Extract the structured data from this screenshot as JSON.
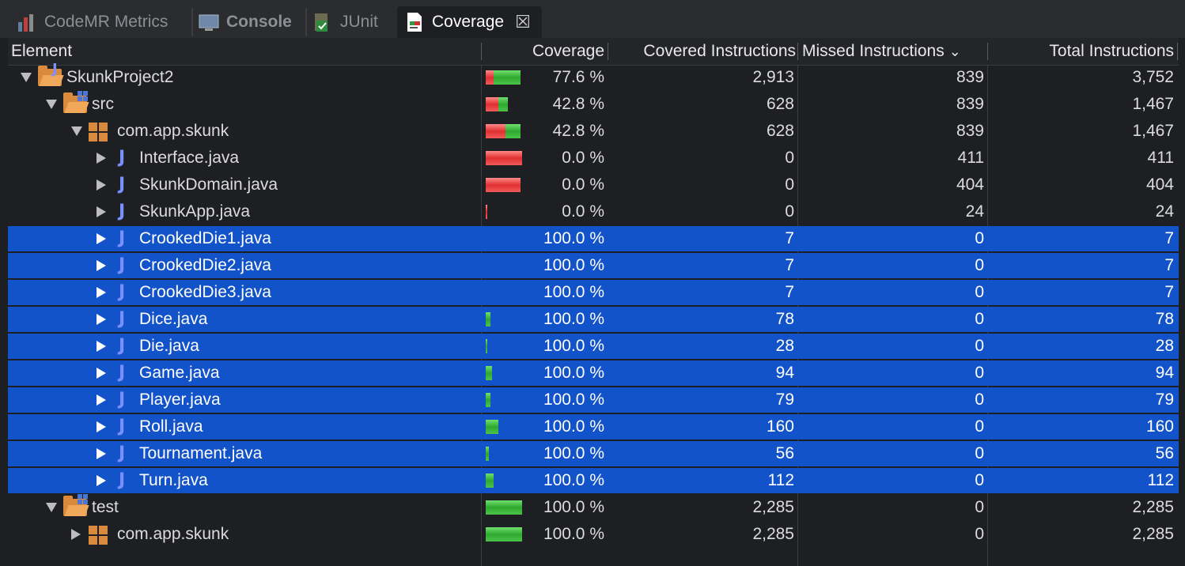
{
  "tabs": [
    {
      "label": "CodeMR Metrics",
      "icon": "bar-chart-icon"
    },
    {
      "label": "Console",
      "icon": "monitor-icon"
    },
    {
      "label": "JUnit",
      "icon": "junit-icon"
    },
    {
      "label": "Coverage",
      "icon": "coverage-icon",
      "close": "☒"
    }
  ],
  "columns": {
    "element": "Element",
    "coverage": "Coverage",
    "covered": "Covered Instructions",
    "missed": "Missed Instructions",
    "total": "Total Instructions",
    "sort_indicator": "⌄"
  },
  "colors": {
    "selection": "#1353c9",
    "covered_bar": "#3fbf3f",
    "missed_bar": "#e84040"
  },
  "rows": [
    {
      "name": "SkunkProject2",
      "icon": "java-project-icon",
      "coverage": "77.6 %",
      "covered": "2,913",
      "missed": "839",
      "total": "3,752",
      "covered_fraction": 0.776,
      "expanded": true,
      "selected": false
    },
    {
      "name": "src",
      "icon": "source-folder-icon",
      "coverage": "42.8 %",
      "covered": "628",
      "missed": "839",
      "total": "1,467",
      "covered_fraction": 0.428,
      "expanded": true,
      "selected": false
    },
    {
      "name": "com.app.skunk",
      "icon": "package-icon",
      "coverage": "42.8 %",
      "covered": "628",
      "missed": "839",
      "total": "1,467",
      "covered_fraction": 0.428,
      "expanded": true,
      "selected": false
    },
    {
      "name": "Interface.java",
      "icon": "java-file-icon",
      "coverage": "0.0 %",
      "covered": "0",
      "missed": "411",
      "total": "411",
      "covered_fraction": 0,
      "expanded": false,
      "selected": false
    },
    {
      "name": "SkunkDomain.java",
      "icon": "java-file-icon",
      "coverage": "0.0 %",
      "covered": "0",
      "missed": "404",
      "total": "404",
      "covered_fraction": 0,
      "expanded": false,
      "selected": false
    },
    {
      "name": "SkunkApp.java",
      "icon": "java-file-icon",
      "coverage": "0.0 %",
      "covered": "0",
      "missed": "24",
      "total": "24",
      "covered_fraction": 0,
      "expanded": false,
      "selected": false
    },
    {
      "name": "CrookedDie1.java",
      "icon": "java-file-icon",
      "coverage": "100.0 %",
      "covered": "7",
      "missed": "0",
      "total": "7",
      "covered_fraction": 1,
      "expanded": false,
      "selected": true
    },
    {
      "name": "CrookedDie2.java",
      "icon": "java-file-icon",
      "coverage": "100.0 %",
      "covered": "7",
      "missed": "0",
      "total": "7",
      "covered_fraction": 1,
      "expanded": false,
      "selected": true
    },
    {
      "name": "CrookedDie3.java",
      "icon": "java-file-icon",
      "coverage": "100.0 %",
      "covered": "7",
      "missed": "0",
      "total": "7",
      "covered_fraction": 1,
      "expanded": false,
      "selected": true
    },
    {
      "name": "Dice.java",
      "icon": "java-file-icon",
      "coverage": "100.0 %",
      "covered": "78",
      "missed": "0",
      "total": "78",
      "covered_fraction": 1,
      "expanded": false,
      "selected": true
    },
    {
      "name": "Die.java",
      "icon": "java-file-icon",
      "coverage": "100.0 %",
      "covered": "28",
      "missed": "0",
      "total": "28",
      "covered_fraction": 1,
      "expanded": false,
      "selected": true
    },
    {
      "name": "Game.java",
      "icon": "java-file-icon",
      "coverage": "100.0 %",
      "covered": "94",
      "missed": "0",
      "total": "94",
      "covered_fraction": 1,
      "expanded": false,
      "selected": true
    },
    {
      "name": "Player.java",
      "icon": "java-file-icon",
      "coverage": "100.0 %",
      "covered": "79",
      "missed": "0",
      "total": "79",
      "covered_fraction": 1,
      "expanded": false,
      "selected": true
    },
    {
      "name": "Roll.java",
      "icon": "java-file-icon",
      "coverage": "100.0 %",
      "covered": "160",
      "missed": "0",
      "total": "160",
      "covered_fraction": 1,
      "expanded": false,
      "selected": true
    },
    {
      "name": "Tournament.java",
      "icon": "java-file-icon",
      "coverage": "100.0 %",
      "covered": "56",
      "missed": "0",
      "total": "56",
      "covered_fraction": 1,
      "expanded": false,
      "selected": true
    },
    {
      "name": "Turn.java",
      "icon": "java-file-icon",
      "coverage": "100.0 %",
      "covered": "112",
      "missed": "0",
      "total": "112",
      "covered_fraction": 1,
      "expanded": false,
      "selected": true
    },
    {
      "name": "test",
      "icon": "source-folder-icon",
      "coverage": "100.0 %",
      "covered": "2,285",
      "missed": "0",
      "total": "2,285",
      "covered_fraction": 1,
      "expanded": true,
      "selected": false
    },
    {
      "name": "com.app.skunk",
      "icon": "package-icon",
      "coverage": "100.0 %",
      "covered": "2,285",
      "missed": "0",
      "total": "2,285",
      "covered_fraction": 1,
      "expanded": false,
      "selected": false
    }
  ]
}
